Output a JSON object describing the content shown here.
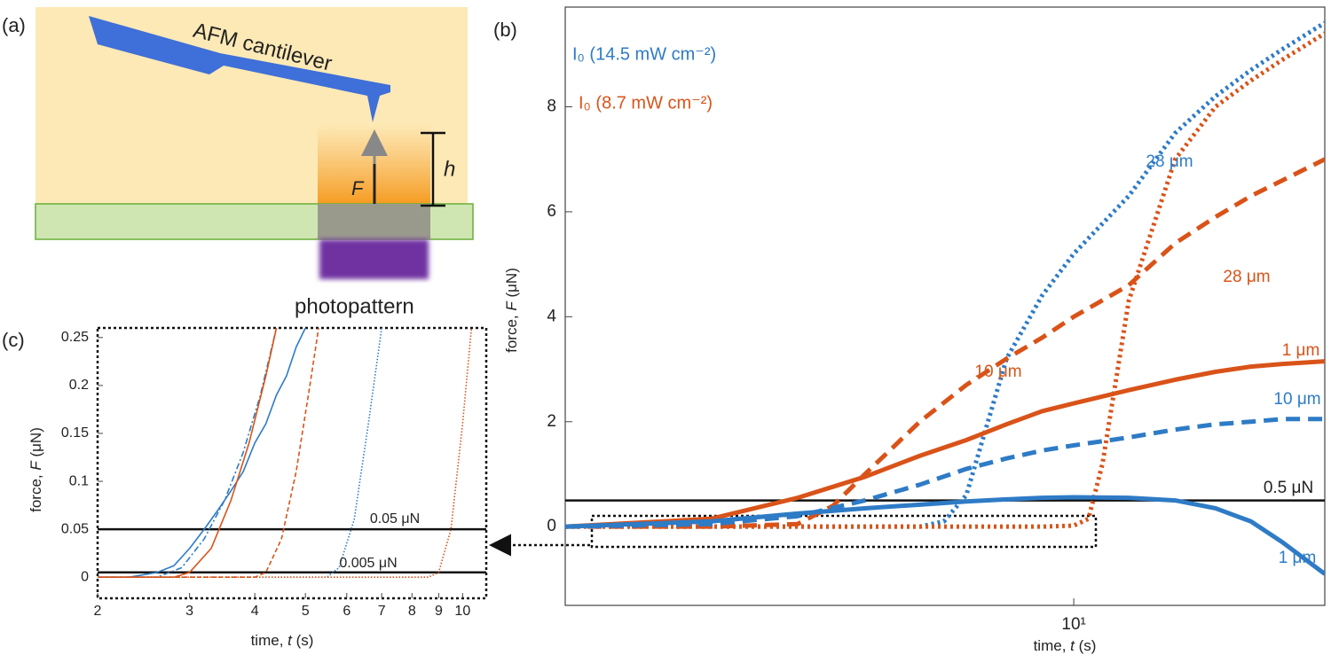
{
  "diagram": {
    "panel_label": "(a)",
    "cantilever_label": "AFM cantilever",
    "force_label": "F",
    "height_label": "h",
    "light_label": "photopattern"
  },
  "chart_data": [
    {
      "type": "line",
      "panel_label": "(b)",
      "xscale": "log",
      "xlabel": [
        "time, ",
        "t",
        " (s)"
      ],
      "ylabel": [
        "force, ",
        "F",
        " (μN)"
      ],
      "xlim": [
        1.85,
        23
      ],
      "xticks": [
        {
          "value": 10,
          "label": "10¹"
        }
      ],
      "ylim": [
        -1.5,
        9.9
      ],
      "yticks": [
        0,
        2,
        4,
        6,
        8
      ],
      "legend": [
        {
          "name": "I₀ (14.5 mW cm⁻²)",
          "color": "#2e7bc6"
        },
        {
          "name": "I₀ (8.7 mW cm⁻²)",
          "color": "#d95319"
        }
      ],
      "hlines": [
        {
          "value": 0.5,
          "label": "0.5 μN"
        }
      ],
      "series": [
        {
          "name": "28 μm",
          "color": "#2e7bc6",
          "style": "dotted",
          "x": [
            1.85,
            4,
            6,
            6.5,
            7,
            8,
            9,
            10,
            12,
            14,
            16,
            18,
            20,
            23
          ],
          "values": [
            0,
            0,
            0,
            0.1,
            0.6,
            3.2,
            4.4,
            5.2,
            6.3,
            7.5,
            8.2,
            8.7,
            9.1,
            9.6
          ]
        },
        {
          "name": "28 μm",
          "color": "#d95319",
          "style": "dotted",
          "x": [
            1.85,
            6,
            9,
            10,
            10.5,
            11,
            12,
            14,
            16,
            18,
            20,
            23
          ],
          "values": [
            0,
            0,
            0,
            0.02,
            0.15,
            1.2,
            4.3,
            7.0,
            8.0,
            8.5,
            8.9,
            9.4
          ]
        },
        {
          "name": "10 μm",
          "color": "#d95319",
          "style": "dashed",
          "x": [
            1.85,
            3,
            4,
            4.5,
            5,
            6,
            7,
            8,
            9,
            10,
            12,
            14,
            16,
            18,
            20,
            23
          ],
          "values": [
            0,
            0,
            0.05,
            0.4,
            1.0,
            2.0,
            2.7,
            3.2,
            3.6,
            4.0,
            4.6,
            5.4,
            5.9,
            6.3,
            6.6,
            7.0
          ]
        },
        {
          "name": "1 μm",
          "color": "#d95319",
          "style": "solid",
          "x": [
            1.85,
            3,
            4,
            5,
            6,
            7,
            8,
            9,
            10,
            12,
            14,
            16,
            18,
            20,
            23
          ],
          "values": [
            0,
            0.15,
            0.55,
            0.95,
            1.35,
            1.65,
            1.95,
            2.2,
            2.35,
            2.6,
            2.8,
            2.95,
            3.05,
            3.1,
            3.15
          ]
        },
        {
          "name": "10 μm",
          "color": "#2e7bc6",
          "style": "dashed",
          "x": [
            1.85,
            3,
            4,
            5,
            6,
            7,
            8,
            9,
            10,
            12,
            14,
            16,
            18,
            20,
            23
          ],
          "values": [
            0,
            0.05,
            0.2,
            0.5,
            0.8,
            1.1,
            1.3,
            1.45,
            1.55,
            1.7,
            1.85,
            1.95,
            2.0,
            2.05,
            2.05
          ]
        },
        {
          "name": "1 μm",
          "color": "#2e7bc6",
          "style": "solid",
          "x": [
            1.85,
            3,
            4,
            5,
            6,
            7,
            8,
            9,
            10,
            12,
            14,
            16,
            18,
            20,
            23
          ],
          "values": [
            0,
            0.1,
            0.25,
            0.35,
            0.42,
            0.48,
            0.52,
            0.55,
            0.56,
            0.55,
            0.5,
            0.35,
            0.1,
            -0.3,
            -0.9
          ]
        }
      ]
    },
    {
      "type": "line",
      "panel_label": "(c)",
      "xscale": "log",
      "xlabel": [
        "time, ",
        "t",
        " (s)"
      ],
      "ylabel": [
        "force, ",
        "F",
        " (μN)"
      ],
      "xlim": [
        2,
        11.1
      ],
      "xticks": [
        2,
        3,
        4,
        5,
        6,
        7,
        8,
        9,
        10
      ],
      "ylim": [
        -0.022,
        0.26
      ],
      "yticks": [
        0,
        0.05,
        0.1,
        0.15,
        0.2,
        0.25
      ],
      "hlines": [
        {
          "value": 0.05,
          "label": "0.05 μN"
        },
        {
          "value": 0.005,
          "label": "0.005 μN"
        }
      ],
      "series": [
        {
          "color": "#2e7bc6",
          "style": "solid",
          "x": [
            2,
            2.3,
            2.6,
            2.8,
            3,
            3.2,
            3.4,
            3.6,
            3.8,
            4,
            4.2,
            4.4,
            4.6,
            4.8,
            5
          ],
          "values": [
            0,
            0,
            0.005,
            0.012,
            0.03,
            0.05,
            0.07,
            0.09,
            0.11,
            0.14,
            0.16,
            0.19,
            0.21,
            0.24,
            0.26
          ]
        },
        {
          "color": "#2e7bc6",
          "style": "dashdot",
          "x": [
            2,
            2.6,
            2.9,
            3.2,
            3.5,
            3.8,
            4.1,
            4.4
          ],
          "values": [
            0,
            0,
            0.01,
            0.04,
            0.08,
            0.13,
            0.19,
            0.26
          ]
        },
        {
          "color": "#d95319",
          "style": "solid",
          "x": [
            2,
            2.8,
            3,
            3.3,
            3.6,
            3.9,
            4.2,
            4.4
          ],
          "values": [
            0,
            0,
            0.005,
            0.03,
            0.08,
            0.14,
            0.21,
            0.26
          ]
        },
        {
          "color": "#d95319",
          "style": "dashed",
          "x": [
            2,
            4,
            4.2,
            4.5,
            4.8,
            5.1,
            5.3
          ],
          "values": [
            0,
            0,
            0.005,
            0.04,
            0.11,
            0.2,
            0.26
          ]
        },
        {
          "color": "#2e7bc6",
          "style": "dotted",
          "x": [
            2,
            5.5,
            5.8,
            6.2,
            6.6,
            7
          ],
          "values": [
            0,
            0,
            0.01,
            0.06,
            0.16,
            0.26
          ]
        },
        {
          "color": "#d95319",
          "style": "dotted",
          "x": [
            2,
            8.6,
            9,
            9.5,
            10,
            10.4
          ],
          "values": [
            0,
            0,
            0.005,
            0.05,
            0.16,
            0.26
          ]
        }
      ]
    }
  ]
}
